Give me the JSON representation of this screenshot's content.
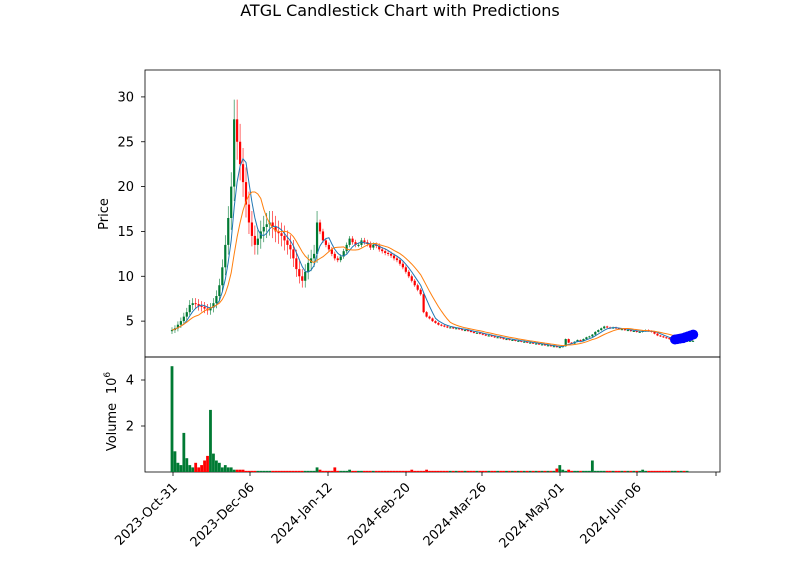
{
  "chart_data": {
    "type": "candlestick",
    "title": "ATGL Candlestick Chart with Predictions",
    "ylabel_price": "Price",
    "ylabel_volume": "Volume",
    "volume_exponent": "10",
    "volume_exponent_power": "6",
    "ylim_price": [
      1.0,
      33.0
    ],
    "ylim_volume": [
      0,
      5.0
    ],
    "price_ticks": [
      "5",
      "10",
      "15",
      "20",
      "25",
      "30"
    ],
    "volume_ticks": [
      "2",
      "4"
    ],
    "x_ticks": [
      "2023-Oct-31",
      "2023-Dec-06",
      "2024-Jan-12",
      "2024-Feb-20",
      "2024-Mar-26",
      "2024-May-01",
      "2024-Jun-06"
    ],
    "colors": {
      "up": "#007a33",
      "down": "#ff0000",
      "ma_short": "#1f77b4",
      "ma_long": "#ff7f0e",
      "prediction": "#0000ff"
    },
    "price_close": [
      4.0,
      4.2,
      4.6,
      5.0,
      5.5,
      6.0,
      6.8,
      7.0,
      6.9,
      6.7,
      6.6,
      6.4,
      6.2,
      6.5,
      7.0,
      7.8,
      9.0,
      11.0,
      13.5,
      16.5,
      20.0,
      27.5,
      25.0,
      22.5,
      20.5,
      18.0,
      16.0,
      14.5,
      13.5,
      14.2,
      15.0,
      15.5,
      15.8,
      16.0,
      15.5,
      15.0,
      14.8,
      14.5,
      14.0,
      13.5,
      13.0,
      12.0,
      10.8,
      10.0,
      9.5,
      10.5,
      11.5,
      12.0,
      12.5,
      16.0,
      15.0,
      14.0,
      13.5,
      13.0,
      12.5,
      12.0,
      11.8,
      12.2,
      12.8,
      13.5,
      14.2,
      13.8,
      13.5,
      13.5,
      14.0,
      13.8,
      13.6,
      13.2,
      13.5,
      13.4,
      13.0,
      12.8,
      12.6,
      12.5,
      12.3,
      12.0,
      11.8,
      11.4,
      11.0,
      10.5,
      10.0,
      9.5,
      9.0,
      8.5,
      8.0,
      6.0,
      5.5,
      5.3,
      5.0,
      4.8,
      4.6,
      4.5,
      4.4,
      4.3,
      4.3,
      4.2,
      4.2,
      4.1,
      4.0,
      4.0,
      3.9,
      3.8,
      3.7,
      3.7,
      3.6,
      3.5,
      3.4,
      3.4,
      3.3,
      3.2,
      3.2,
      3.1,
      3.0,
      3.0,
      2.9,
      2.9,
      2.8,
      2.8,
      2.7,
      2.7,
      2.6,
      2.6,
      2.5,
      2.5,
      2.4,
      2.4,
      2.3,
      2.3,
      2.2,
      2.2,
      2.1,
      2.1,
      2.2,
      3.0,
      2.6,
      2.5,
      2.7,
      2.9,
      2.8,
      3.0,
      3.2,
      3.3,
      3.5,
      3.8,
      4.0,
      4.2,
      4.4,
      4.3,
      4.2,
      4.3,
      4.2,
      4.1,
      4.1,
      4.0,
      4.0,
      3.9,
      3.9,
      3.8,
      3.8,
      3.9,
      4.0,
      3.9,
      3.8,
      3.6,
      3.4,
      3.3,
      3.2,
      3.1,
      3.0,
      3.0,
      3.0,
      2.9,
      2.9,
      2.8,
      2.8,
      2.8,
      2.8
    ],
    "volume": [
      4.6,
      0.9,
      0.4,
      0.3,
      1.7,
      0.6,
      0.3,
      0.2,
      0.4,
      0.2,
      0.3,
      0.5,
      0.7,
      2.7,
      0.8,
      0.5,
      0.4,
      0.2,
      0.3,
      0.2,
      0.2,
      0.1,
      0.1,
      0.1,
      0.1,
      0.05,
      0.05,
      0.05,
      0.05,
      0.05,
      0.05,
      0.05,
      0.05,
      0.05,
      0.05,
      0.05,
      0.05,
      0.05,
      0.05,
      0.05,
      0.05,
      0.05,
      0.05,
      0.05,
      0.05,
      0.05,
      0.05,
      0.05,
      0.05,
      0.2,
      0.1,
      0.05,
      0.05,
      0.05,
      0.05,
      0.2,
      0.05,
      0.05,
      0.05,
      0.05,
      0.1,
      0.05,
      0.05,
      0.05,
      0.05,
      0.05,
      0.05,
      0.05,
      0.05,
      0.05,
      0.05,
      0.05,
      0.05,
      0.05,
      0.05,
      0.05,
      0.05,
      0.05,
      0.05,
      0.05,
      0.05,
      0.1,
      0.05,
      0.05,
      0.05,
      0.05,
      0.1,
      0.05,
      0.05,
      0.05,
      0.05,
      0.05,
      0.05,
      0.05,
      0.05,
      0.05,
      0.05,
      0.05,
      0.05,
      0.05,
      0.05,
      0.05,
      0.05,
      0.05,
      0.05,
      0.05,
      0.05,
      0.05,
      0.05,
      0.05,
      0.05,
      0.05,
      0.05,
      0.05,
      0.05,
      0.05,
      0.05,
      0.05,
      0.05,
      0.05,
      0.05,
      0.05,
      0.05,
      0.05,
      0.05,
      0.05,
      0.05,
      0.05,
      0.05,
      0.05,
      0.15,
      0.3,
      0.1,
      0.05,
      0.1,
      0.05,
      0.05,
      0.05,
      0.05,
      0.05,
      0.05,
      0.05,
      0.5,
      0.05,
      0.05,
      0.05,
      0.05,
      0.05,
      0.05,
      0.05,
      0.05,
      0.05,
      0.05,
      0.05,
      0.05,
      0.05,
      0.05,
      0.05,
      0.05,
      0.1,
      0.05,
      0.05,
      0.05,
      0.05,
      0.05,
      0.05,
      0.05,
      0.05,
      0.05,
      0.05,
      0.05,
      0.05,
      0.05,
      0.05,
      0.05
    ],
    "predictions": [
      2.95,
      3.0,
      3.05,
      3.1,
      3.2,
      3.3,
      3.4,
      3.5
    ]
  }
}
